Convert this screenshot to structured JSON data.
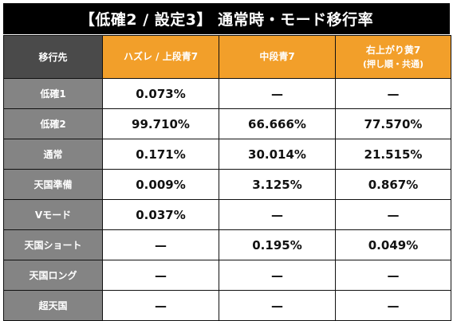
{
  "title": "【低確2 / 設定3】 通常時・モード移行率",
  "table": {
    "corner": "移行先",
    "columns": [
      {
        "label": "ハズレ / 上段青7",
        "sub": ""
      },
      {
        "label": "中段青7",
        "sub": ""
      },
      {
        "label": "右上がり黄7",
        "sub": "(押し順・共通)"
      }
    ],
    "rows": [
      {
        "label": "低確1",
        "values": [
          "0.073%",
          "—",
          "—"
        ]
      },
      {
        "label": "低確2",
        "values": [
          "99.710%",
          "66.666%",
          "77.570%"
        ]
      },
      {
        "label": "通常",
        "values": [
          "0.171%",
          "30.014%",
          "21.515%"
        ]
      },
      {
        "label": "天国準備",
        "values": [
          "0.009%",
          "3.125%",
          "0.867%"
        ]
      },
      {
        "label": "Vモード",
        "values": [
          "0.037%",
          "—",
          "—"
        ]
      },
      {
        "label": "天国ショート",
        "values": [
          "—",
          "0.195%",
          "0.049%"
        ]
      },
      {
        "label": "天国ロング",
        "values": [
          "—",
          "—",
          "—"
        ]
      },
      {
        "label": "超天国",
        "values": [
          "—",
          "—",
          "—"
        ]
      }
    ]
  },
  "colors": {
    "title_bg": "#000000",
    "header_orange": "#f29f2a",
    "corner_bg": "#4a4a4a",
    "row_header_bg": "#848484"
  }
}
